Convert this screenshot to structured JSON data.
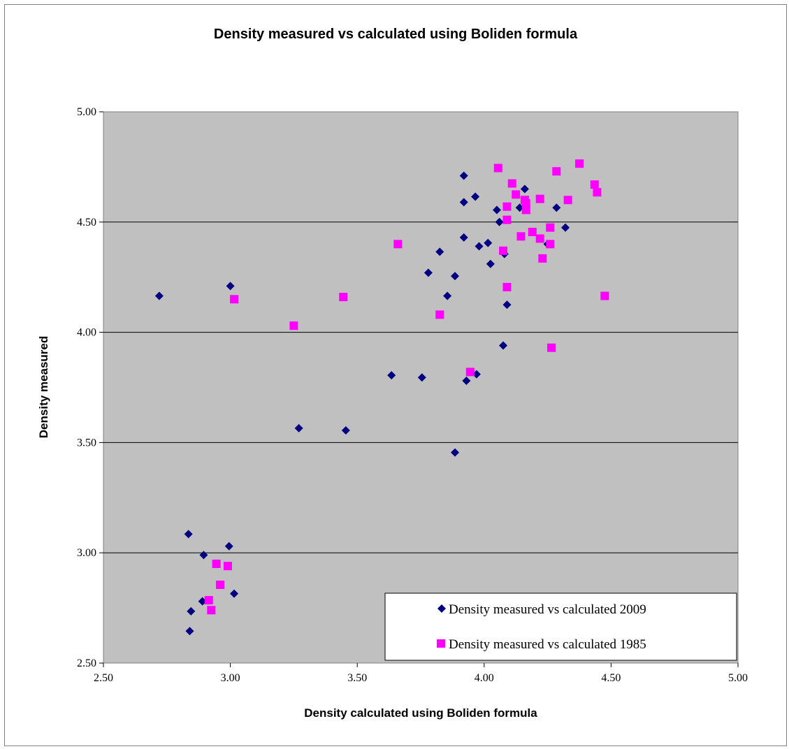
{
  "chart_data": {
    "type": "scatter",
    "title": "Density measured vs calculated using Boliden formula",
    "xlabel": "Density calculated using Boliden formula",
    "ylabel": "Density measured",
    "xlim": [
      2.5,
      5.0
    ],
    "ylim": [
      2.5,
      5.0
    ],
    "x_ticks": [
      "2.50",
      "3.00",
      "3.50",
      "4.00",
      "4.50",
      "5.00"
    ],
    "y_ticks": [
      "2.50",
      "3.00",
      "3.50",
      "4.00",
      "4.50",
      "5.00"
    ],
    "grid": "horizontal",
    "legend_position": "bottom-right",
    "plot_background": "#c0c0c0",
    "series": [
      {
        "name": "Density measured vs calculated 2009",
        "marker": "diamond",
        "color": "#000080",
        "points": [
          [
            2.72,
            4.165
          ],
          [
            3.0,
            4.21
          ],
          [
            3.27,
            3.565
          ],
          [
            3.455,
            3.555
          ],
          [
            3.635,
            3.805
          ],
          [
            3.755,
            3.795
          ],
          [
            3.78,
            4.27
          ],
          [
            3.825,
            4.365
          ],
          [
            3.855,
            4.165
          ],
          [
            3.885,
            4.255
          ],
          [
            3.885,
            3.455
          ],
          [
            3.92,
            4.71
          ],
          [
            3.92,
            4.59
          ],
          [
            3.92,
            4.43
          ],
          [
            3.93,
            3.78
          ],
          [
            3.965,
            4.615
          ],
          [
            3.97,
            3.81
          ],
          [
            3.98,
            4.39
          ],
          [
            4.015,
            4.405
          ],
          [
            4.025,
            4.31
          ],
          [
            4.05,
            4.555
          ],
          [
            4.06,
            4.5
          ],
          [
            4.075,
            3.94
          ],
          [
            4.08,
            4.355
          ],
          [
            4.09,
            4.125
          ],
          [
            4.14,
            4.565
          ],
          [
            4.16,
            4.65
          ],
          [
            4.25,
            4.4
          ],
          [
            4.285,
            4.565
          ],
          [
            4.32,
            4.475
          ],
          [
            2.835,
            3.085
          ],
          [
            2.895,
            2.99
          ],
          [
            2.995,
            3.03
          ],
          [
            2.89,
            2.78
          ],
          [
            2.845,
            2.735
          ],
          [
            3.015,
            2.815
          ],
          [
            2.84,
            2.645
          ]
        ]
      },
      {
        "name": "Density measured vs calculated 1985",
        "marker": "square",
        "color": "#ff00ff",
        "points": [
          [
            3.015,
            4.15
          ],
          [
            3.25,
            4.03
          ],
          [
            3.445,
            4.16
          ],
          [
            3.66,
            4.4
          ],
          [
            3.825,
            4.08
          ],
          [
            3.945,
            3.82
          ],
          [
            4.055,
            4.745
          ],
          [
            4.075,
            4.37
          ],
          [
            4.09,
            4.57
          ],
          [
            4.09,
            4.51
          ],
          [
            4.09,
            4.205
          ],
          [
            4.11,
            4.675
          ],
          [
            4.125,
            4.625
          ],
          [
            4.145,
            4.435
          ],
          [
            4.16,
            4.6
          ],
          [
            4.165,
            4.585
          ],
          [
            4.165,
            4.555
          ],
          [
            4.19,
            4.455
          ],
          [
            4.22,
            4.605
          ],
          [
            4.22,
            4.425
          ],
          [
            4.23,
            4.335
          ],
          [
            4.26,
            4.475
          ],
          [
            4.26,
            4.4
          ],
          [
            4.265,
            3.93
          ],
          [
            4.285,
            4.73
          ],
          [
            4.33,
            4.6
          ],
          [
            4.375,
            4.765
          ],
          [
            4.435,
            4.67
          ],
          [
            4.445,
            4.635
          ],
          [
            4.475,
            4.165
          ],
          [
            2.915,
            2.785
          ],
          [
            2.945,
            2.95
          ],
          [
            2.96,
            2.855
          ],
          [
            2.99,
            2.94
          ],
          [
            2.925,
            2.74
          ]
        ]
      }
    ]
  }
}
